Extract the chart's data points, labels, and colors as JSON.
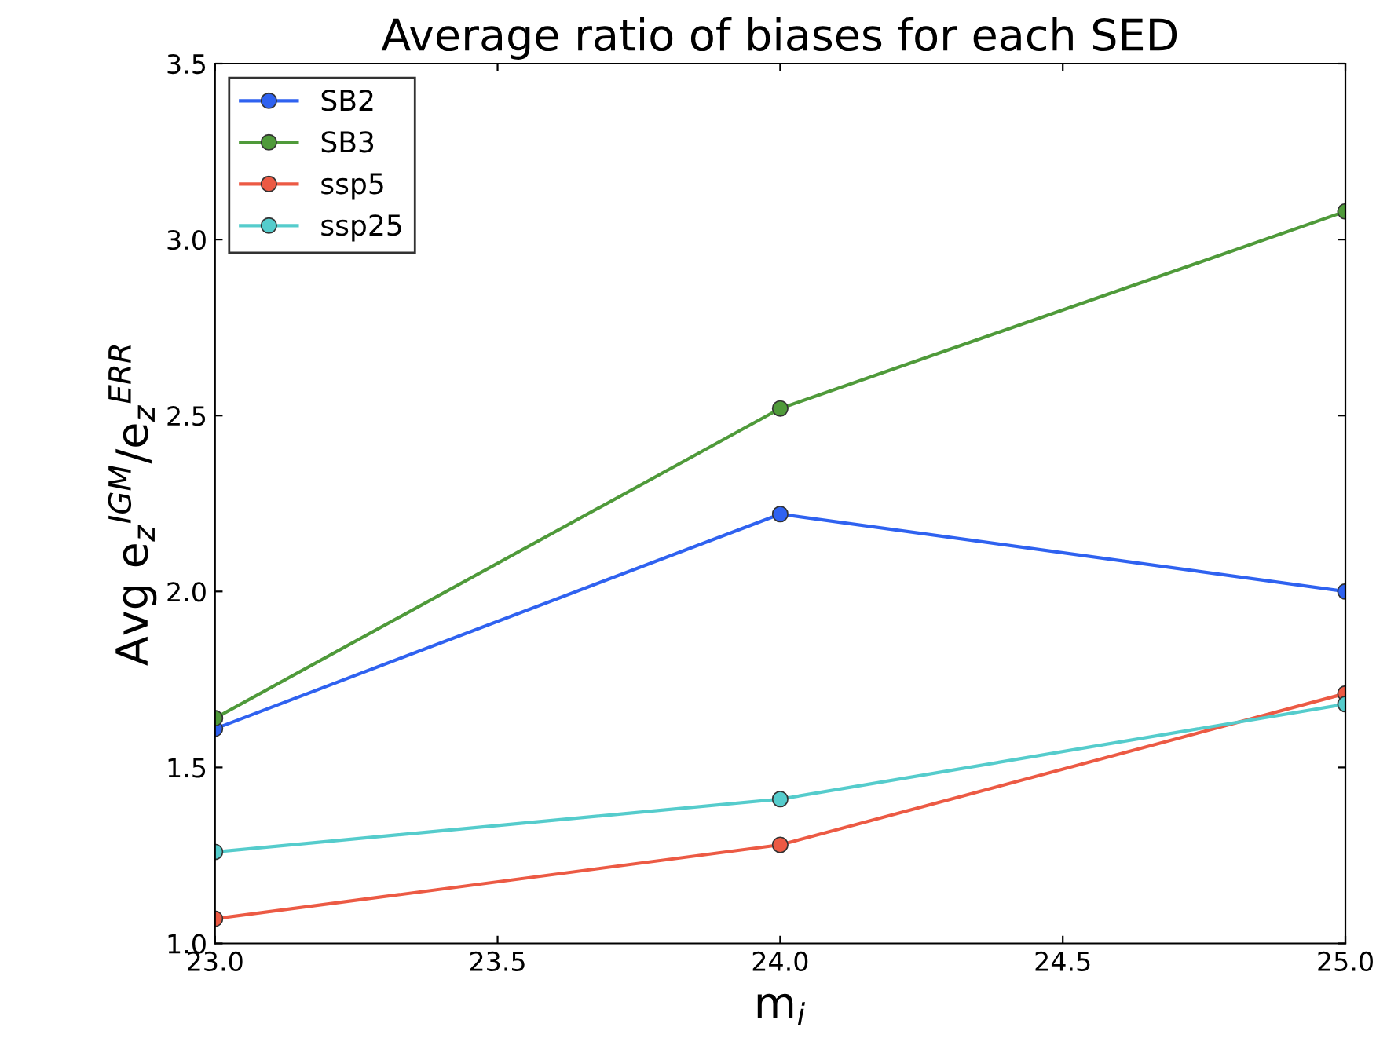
{
  "chart_data": {
    "type": "line",
    "title": "Average ratio of biases for each SED",
    "xlabel": "m$_{i}$",
    "ylabel": "Avg e$_{z}$$^{IGM}$/e$_{z}$$^{ERR}$",
    "x": [
      23.0,
      24.0,
      25.0
    ],
    "series": [
      {
        "name": "SB2",
        "color": "#2f62f0",
        "values": [
          1.61,
          2.22,
          2.0
        ]
      },
      {
        "name": "SB3",
        "color": "#4f9a3a",
        "values": [
          1.64,
          2.52,
          3.08
        ]
      },
      {
        "name": "ssp5",
        "color": "#ec5a44",
        "values": [
          1.07,
          1.28,
          1.71
        ]
      },
      {
        "name": "ssp25",
        "color": "#55cccc",
        "values": [
          1.26,
          1.41,
          1.68
        ]
      }
    ],
    "xlim": [
      23.0,
      25.0
    ],
    "xticks": [
      {
        "value": 23.0,
        "label": "23.0"
      },
      23.5,
      {
        "value": 24.0,
        "label": "24.0"
      },
      24.5,
      {
        "value": 25.0,
        "label": "25.0"
      }
    ],
    "ylim": [
      1.0,
      3.5
    ],
    "yticks": [
      {
        "value": 1.0,
        "label": "1.0"
      },
      1.5,
      {
        "value": 2.0,
        "label": "2.0"
      },
      2.5,
      {
        "value": 3.0,
        "label": "3.0"
      },
      3.5
    ],
    "grid": false,
    "legend": "top left",
    "marker": "circle",
    "line_style": "solid"
  }
}
